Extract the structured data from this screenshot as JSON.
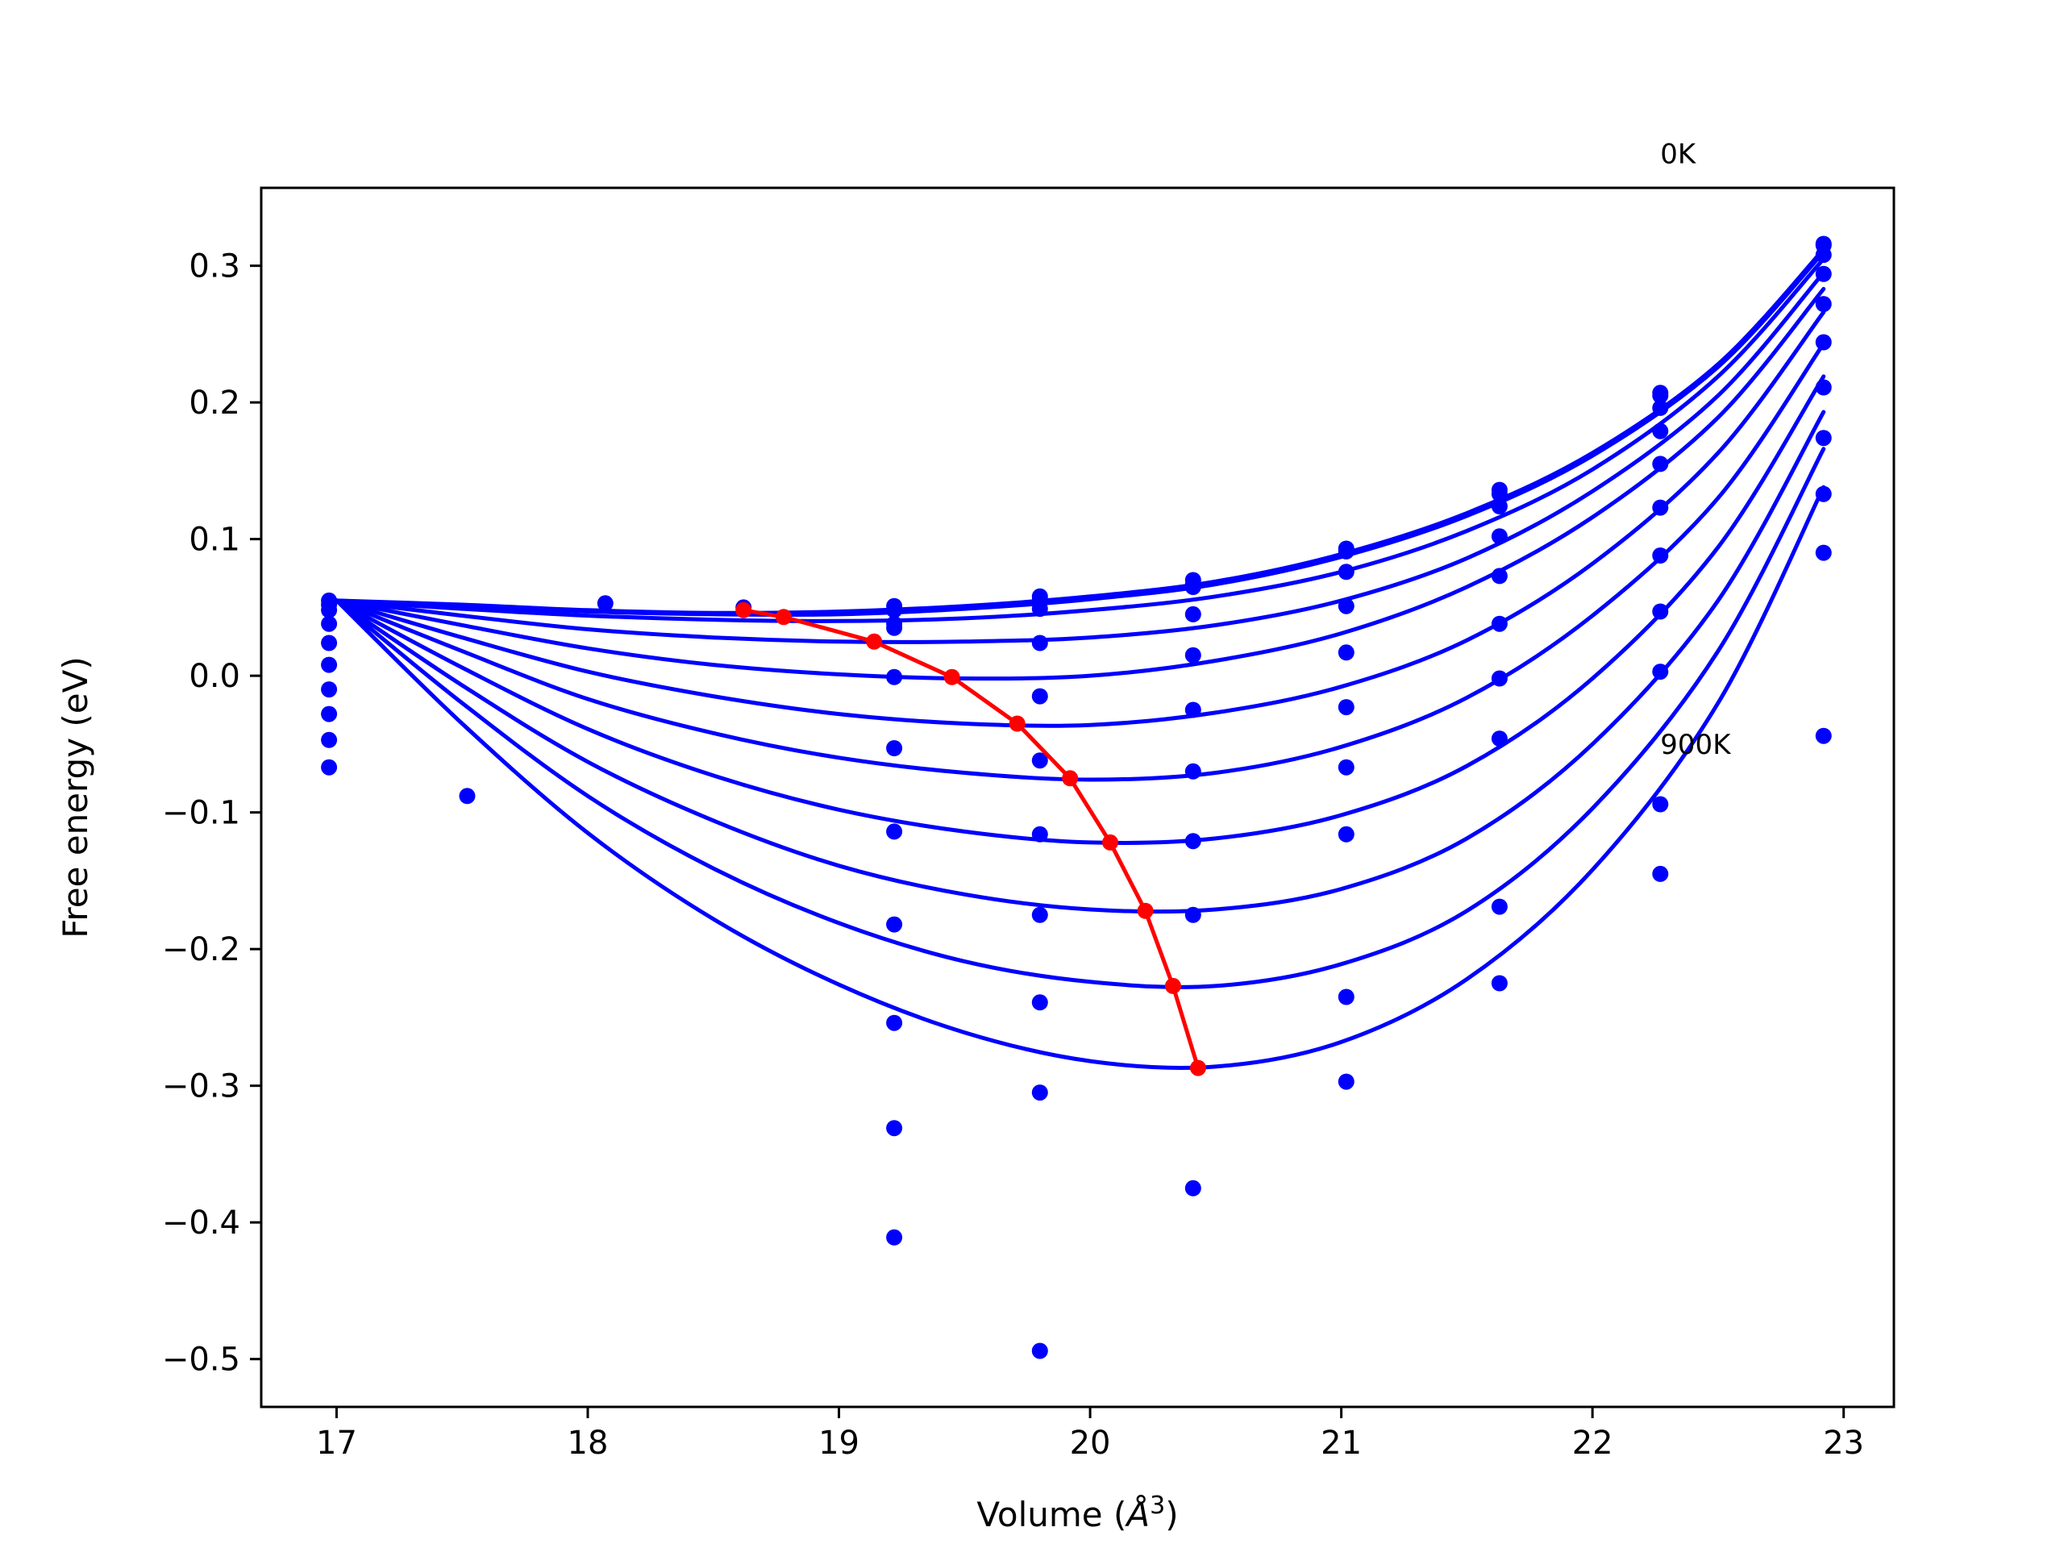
{
  "chart_data": {
    "type": "scatter",
    "title": "",
    "xlabel": "Volume (",
    "xlabel_symbol": "Å",
    "xlabel_sup": "3",
    "xlabel_close": ")",
    "ylabel": "Free energy (eV)",
    "xlim": [
      16.7,
      23.2
    ],
    "ylim": [
      -0.535,
      0.357
    ],
    "xticks": [
      17,
      18,
      19,
      20,
      21,
      22,
      23
    ],
    "xtick_labels": [
      "17",
      "18",
      "19",
      "20",
      "21",
      "22",
      "23"
    ],
    "yticks": [
      -0.5,
      -0.4,
      -0.3,
      -0.2,
      -0.1,
      0.0,
      0.1,
      0.2,
      0.3
    ],
    "ytick_labels": [
      "−0.5",
      "−0.4",
      "−0.3",
      "−0.2",
      "−0.1",
      "0.0",
      "0.1",
      "0.2",
      "0.3"
    ],
    "grid": false,
    "annotations": [
      {
        "text": "0K",
        "x": 22.27,
        "y": 0.375
      },
      {
        "text": "900K",
        "x": 22.27,
        "y": -0.057
      }
    ],
    "colors": {
      "fit": "#0000ff",
      "points": "#0000ff",
      "minima": "#ff0000"
    },
    "fit_curves": [
      {
        "x": [
          17.0,
          17.5,
          18.0,
          18.5,
          19.0,
          19.5,
          20.0,
          20.5,
          21.0,
          21.5,
          22.0,
          22.5,
          22.92
        ],
        "y": [
          0.055,
          0.052,
          0.048,
          0.046,
          0.047,
          0.051,
          0.058,
          0.069,
          0.089,
          0.119,
          0.163,
          0.228,
          0.312
        ]
      },
      {
        "x": [
          17.0,
          17.5,
          18.0,
          18.5,
          19.0,
          19.5,
          20.0,
          20.5,
          21.0,
          21.5,
          22.0,
          22.5,
          22.92
        ],
        "y": [
          0.055,
          0.051,
          0.047,
          0.045,
          0.045,
          0.049,
          0.056,
          0.067,
          0.087,
          0.117,
          0.161,
          0.226,
          0.31
        ]
      },
      {
        "x": [
          17.0,
          17.5,
          18.0,
          18.5,
          19.0,
          19.5,
          20.0,
          20.5,
          21.0,
          21.5,
          22.0,
          22.5,
          22.92
        ],
        "y": [
          0.055,
          0.049,
          0.044,
          0.041,
          0.04,
          0.042,
          0.048,
          0.058,
          0.076,
          0.106,
          0.151,
          0.219,
          0.305
        ]
      },
      {
        "x": [
          17.0,
          17.5,
          18.0,
          18.5,
          19.0,
          19.5,
          20.0,
          20.5,
          21.0,
          21.5,
          22.0,
          22.5,
          22.92
        ],
        "y": [
          0.055,
          0.044,
          0.034,
          0.028,
          0.025,
          0.025,
          0.028,
          0.037,
          0.055,
          0.086,
          0.135,
          0.205,
          0.295
        ]
      },
      {
        "x": [
          17.0,
          17.5,
          18.0,
          18.5,
          19.0,
          19.5,
          20.0,
          20.5,
          21.0,
          21.5,
          22.0,
          22.5,
          22.92
        ],
        "y": [
          0.055,
          0.037,
          0.02,
          0.008,
          0.001,
          -0.002,
          0.0,
          0.011,
          0.031,
          0.065,
          0.116,
          0.189,
          0.283
        ]
      },
      {
        "x": [
          17.0,
          17.5,
          18.0,
          18.5,
          19.0,
          19.5,
          20.0,
          20.5,
          21.0,
          21.5,
          22.0,
          22.5,
          22.92
        ],
        "y": [
          0.055,
          0.028,
          0.003,
          -0.015,
          -0.028,
          -0.035,
          -0.036,
          -0.027,
          -0.008,
          0.026,
          0.082,
          0.163,
          0.266
        ]
      },
      {
        "x": [
          17.0,
          17.5,
          18.0,
          18.5,
          19.0,
          19.5,
          20.0,
          20.5,
          21.0,
          21.5,
          22.0,
          22.5,
          22.92
        ],
        "y": [
          0.055,
          0.018,
          -0.017,
          -0.042,
          -0.06,
          -0.071,
          -0.076,
          -0.071,
          -0.052,
          -0.016,
          0.044,
          0.13,
          0.243
        ]
      },
      {
        "x": [
          17.0,
          17.5,
          18.0,
          18.5,
          19.0,
          19.5,
          20.0,
          20.5,
          21.0,
          21.5,
          22.0,
          22.5,
          22.92
        ],
        "y": [
          0.055,
          0.006,
          -0.039,
          -0.073,
          -0.098,
          -0.114,
          -0.122,
          -0.119,
          -0.102,
          -0.066,
          -0.002,
          0.094,
          0.219
        ]
      },
      {
        "x": [
          17.0,
          17.5,
          18.0,
          18.5,
          19.0,
          19.5,
          20.0,
          20.5,
          21.0,
          21.5,
          22.0,
          22.5,
          22.92
        ],
        "y": [
          0.055,
          -0.007,
          -0.063,
          -0.106,
          -0.139,
          -0.16,
          -0.171,
          -0.171,
          -0.156,
          -0.119,
          -0.05,
          0.055,
          0.193
        ]
      },
      {
        "x": [
          17.0,
          17.5,
          18.0,
          18.5,
          19.0,
          19.5,
          20.0,
          20.5,
          21.0,
          21.5,
          22.0,
          22.5,
          22.92
        ],
        "y": [
          0.055,
          -0.02,
          -0.088,
          -0.141,
          -0.181,
          -0.209,
          -0.224,
          -0.227,
          -0.211,
          -0.172,
          -0.097,
          0.018,
          0.166
        ]
      },
      {
        "x": [
          17.0,
          17.5,
          18.0,
          18.5,
          19.0,
          19.5,
          20.0,
          20.5,
          21.0,
          21.5,
          22.0,
          22.5,
          22.92
        ],
        "y": [
          0.055,
          -0.035,
          -0.115,
          -0.178,
          -0.226,
          -0.261,
          -0.282,
          -0.286,
          -0.268,
          -0.222,
          -0.142,
          -0.02,
          0.138
        ]
      }
    ],
    "data_points": {
      "x": [
        16.97,
        16.97,
        16.97,
        16.97,
        16.97,
        16.97,
        16.97,
        16.97,
        16.97,
        16.97,
        17.52,
        18.07,
        18.62,
        19.22,
        19.22,
        19.22,
        19.22,
        19.22,
        19.22,
        19.22,
        19.22,
        19.22,
        19.22,
        19.22,
        19.8,
        19.8,
        19.8,
        19.8,
        19.8,
        19.8,
        19.8,
        19.8,
        19.8,
        19.8,
        19.8,
        20.41,
        20.41,
        20.41,
        20.41,
        20.41,
        20.41,
        20.41,
        20.41,
        20.41,
        20.41,
        21.02,
        21.02,
        21.02,
        21.02,
        21.02,
        21.02,
        21.02,
        21.02,
        21.02,
        21.02,
        21.63,
        21.63,
        21.63,
        21.63,
        21.63,
        21.63,
        21.63,
        21.63,
        21.63,
        21.63,
        22.27,
        22.27,
        22.27,
        22.27,
        22.27,
        22.27,
        22.27,
        22.27,
        22.27,
        22.27,
        22.27,
        22.92,
        22.92,
        22.92,
        22.92,
        22.92,
        22.92,
        22.92,
        22.92,
        22.92,
        22.92,
        22.92
      ],
      "y": [
        0.055,
        0.052,
        0.048,
        0.038,
        0.024,
        0.008,
        -0.01,
        -0.028,
        -0.047,
        -0.067,
        -0.088,
        0.053,
        0.05,
        0.048,
        0.051,
        0.038,
        0.035,
        -0.001,
        -0.053,
        -0.114,
        -0.182,
        -0.254,
        -0.331,
        -0.411,
        -0.494,
        0.058,
        0.055,
        0.049,
        0.024,
        -0.015,
        -0.062,
        -0.116,
        -0.175,
        -0.239,
        -0.305,
        -0.375,
        0.07,
        0.067,
        0.065,
        0.045,
        0.015,
        -0.025,
        -0.07,
        -0.121,
        -0.175,
        -0.235,
        -0.297,
        0.093,
        0.091,
        0.076,
        0.051,
        0.017,
        -0.023,
        -0.067,
        -0.116,
        -0.169,
        -0.225,
        0.136,
        0.133,
        0.124,
        0.102,
        0.073,
        0.038,
        -0.002,
        -0.046,
        -0.094,
        -0.145,
        0.207,
        0.205,
        0.196,
        0.179,
        0.155,
        0.123,
        0.088,
        0.047,
        0.003,
        -0.044,
        0.316,
        0.315,
        0.308,
        0.294,
        0.272,
        0.244,
        0.211,
        0.174,
        0.133,
        0.09
      ]
    },
    "minima_series": {
      "x": [
        18.62,
        18.78,
        19.14,
        19.45,
        19.71,
        19.92,
        20.08,
        20.22,
        20.33,
        20.43
      ],
      "y": [
        0.048,
        0.043,
        0.025,
        -0.001,
        -0.035,
        -0.075,
        -0.122,
        -0.172,
        -0.227,
        -0.287
      ]
    }
  }
}
